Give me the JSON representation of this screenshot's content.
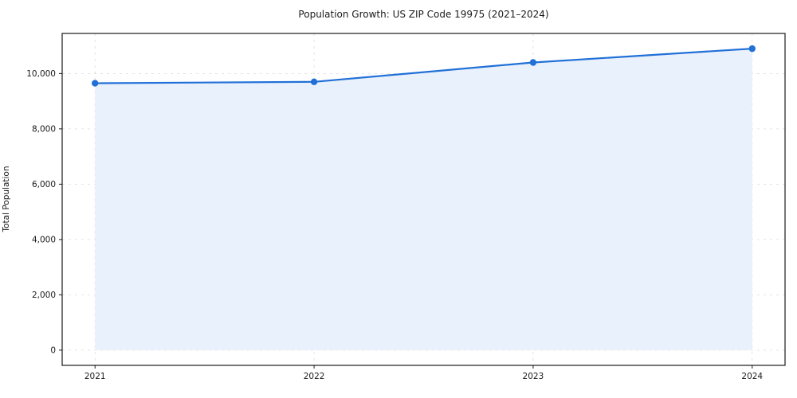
{
  "chart_data": {
    "type": "line",
    "title": "Population Growth: US ZIP Code 19975 (2021–2024)",
    "xlabel": "",
    "ylabel": "Total Population",
    "x": [
      2021,
      2022,
      2023,
      2024
    ],
    "series": [
      {
        "name": "Total Population",
        "values": [
          9650,
          9700,
          10400,
          10900
        ]
      }
    ],
    "x_ticks": [
      2021,
      2022,
      2023,
      2024
    ],
    "y_ticks": [
      0,
      2000,
      4000,
      6000,
      8000,
      10000
    ],
    "xlim": [
      2020.85,
      2024.15
    ],
    "ylim": [
      -550,
      11450
    ],
    "grid": true,
    "legend": false,
    "area_fill": true,
    "area_baseline": 0,
    "colors": {
      "line": "#2170d8",
      "marker": "#2170d8",
      "fill": "#e9f1fc",
      "grid": "#dcdcdc",
      "spine": "#1a1a1a",
      "tick_text": "#1a1a1a",
      "background": "#ffffff"
    }
  }
}
